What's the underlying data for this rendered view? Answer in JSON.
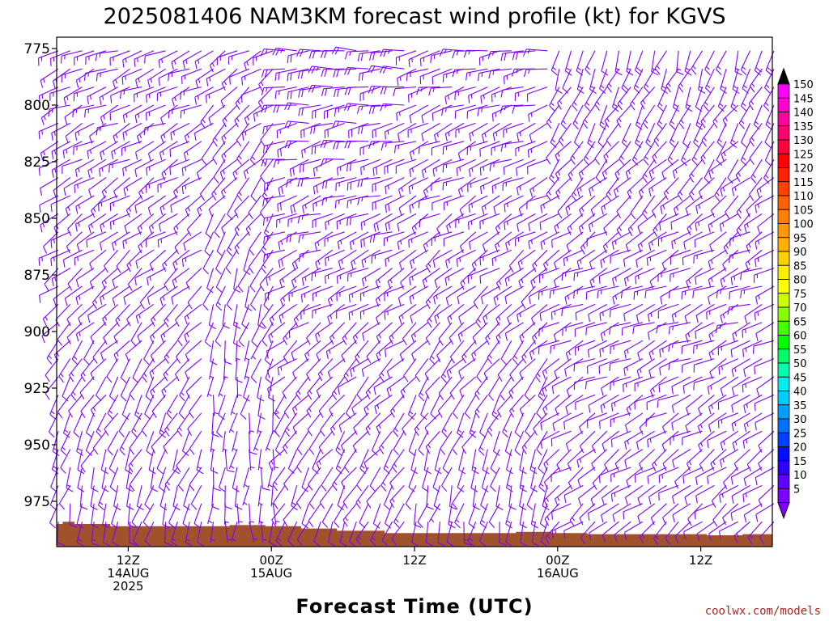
{
  "chart_data": {
    "type": "wind-barb-profile",
    "title": "2025081406 NAM3KM forecast wind profile (kt) for KGVS",
    "xlabel": "Forecast Time (UTC)",
    "ylabel": "",
    "y_axis": {
      "ticks": [
        775,
        800,
        825,
        850,
        875,
        900,
        925,
        950,
        975
      ],
      "range": [
        770,
        995
      ],
      "units": "hPa"
    },
    "x_axis": {
      "tick_labels": [
        {
          "hour": 12,
          "lines": [
            "12Z",
            "14AUG",
            "2025"
          ]
        },
        {
          "hour": 24,
          "lines": [
            "00Z",
            "15AUG"
          ]
        },
        {
          "hour": 36,
          "lines": [
            "12Z"
          ]
        },
        {
          "hour": 48,
          "lines": [
            "00Z",
            "16AUG"
          ]
        },
        {
          "hour": 60,
          "lines": [
            "12Z"
          ]
        }
      ],
      "range_hours": [
        6,
        66
      ]
    },
    "barb_color": "#7f00ff",
    "ground_color": "#a0522d",
    "surface_pressure": [
      {
        "hour": 6,
        "p": 985
      },
      {
        "hour": 6.5,
        "p": 984
      },
      {
        "hour": 7.5,
        "p": 985
      },
      {
        "hour": 10.5,
        "p": 986
      },
      {
        "hour": 15.5,
        "p": 986
      },
      {
        "hour": 20.5,
        "p": 985.5
      },
      {
        "hour": 23.5,
        "p": 986
      },
      {
        "hour": 26.5,
        "p": 987
      },
      {
        "hour": 29.5,
        "p": 988
      },
      {
        "hour": 33.5,
        "p": 989
      },
      {
        "hour": 38.5,
        "p": 989
      },
      {
        "hour": 44.5,
        "p": 988.5
      },
      {
        "hour": 47.5,
        "p": 989
      },
      {
        "hour": 50.5,
        "p": 989.5
      },
      {
        "hour": 55.5,
        "p": 989.5
      },
      {
        "hour": 60.5,
        "p": 990
      },
      {
        "hour": 63.5,
        "p": 989.5
      },
      {
        "hour": 66,
        "p": 989.5
      }
    ],
    "wind_regimes": [
      {
        "from_hour": 6,
        "to_hour": 19,
        "low_dir": 190,
        "mid_dir": 230,
        "high_dir": 250,
        "low_spd": 10,
        "high_spd": 15
      },
      {
        "from_hour": 19,
        "to_hour": 25,
        "low_dir": 180,
        "mid_dir": 200,
        "high_dir": 240,
        "low_spd": 5,
        "high_spd": 15
      },
      {
        "from_hour": 25,
        "to_hour": 36,
        "low_dir": 200,
        "mid_dir": 240,
        "high_dir": 270,
        "low_spd": 10,
        "high_spd": 20
      },
      {
        "from_hour": 36,
        "to_hour": 48,
        "low_dir": 190,
        "mid_dir": 230,
        "high_dir": 260,
        "low_spd": 10,
        "high_spd": 15
      },
      {
        "from_hour": 48,
        "to_hour": 66,
        "low_dir": 230,
        "mid_dir": 250,
        "high_dir": 200,
        "low_spd": 10,
        "high_spd": 15
      }
    ],
    "colorbar": {
      "labels": [
        150,
        145,
        140,
        135,
        130,
        125,
        120,
        115,
        110,
        105,
        100,
        95,
        90,
        85,
        80,
        75,
        70,
        65,
        60,
        55,
        50,
        45,
        40,
        35,
        30,
        25,
        20,
        15,
        10,
        5
      ],
      "colors": [
        "#ff00ff",
        "#ff00d0",
        "#ff00a0",
        "#ff0070",
        "#ff0040",
        "#ff0000",
        "#ff2000",
        "#ff4000",
        "#ff6000",
        "#ff8000",
        "#ff9900",
        "#ffb000",
        "#ffd000",
        "#ffee00",
        "#ffff00",
        "#ccff00",
        "#88ff00",
        "#44ff00",
        "#00ff00",
        "#00ff66",
        "#00ffaa",
        "#00eeee",
        "#00ccff",
        "#00a0ff",
        "#0070ff",
        "#0040ff",
        "#0010ff",
        "#3000ff",
        "#6000ff",
        "#8000ff"
      ]
    }
  },
  "credit": "coolwx.com/models"
}
